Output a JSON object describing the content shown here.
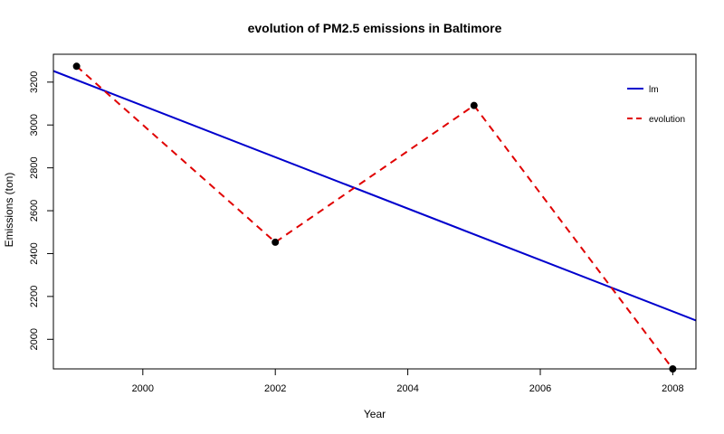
{
  "chart_data": {
    "type": "line",
    "title": "evolution of PM2.5 emissions in Baltimore",
    "xlabel": "Year",
    "ylabel": "Emissions (ton)",
    "xlim": [
      1998.65,
      2008.35
    ],
    "ylim": [
      1862,
      3330
    ],
    "x_ticks": [
      2000,
      2002,
      2004,
      2006,
      2008
    ],
    "y_ticks": [
      2000,
      2200,
      2400,
      2600,
      2800,
      3000,
      3200
    ],
    "legend_position": "top-right",
    "grid": false,
    "series": [
      {
        "name": "lm",
        "style": "solid",
        "color": "#0000CD",
        "x": [
          1998.65,
          2008.35
        ],
        "y": [
          3252,
          2088
        ]
      },
      {
        "name": "evolution",
        "style": "dashed",
        "color": "#E00000",
        "markers": true,
        "marker_color": "#000000",
        "x": [
          1999,
          2002,
          2005,
          2008
        ],
        "y": [
          3274,
          2453,
          3091,
          1862
        ]
      }
    ]
  }
}
